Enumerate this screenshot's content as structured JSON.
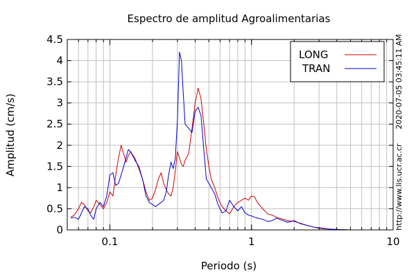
{
  "chart_data": {
    "type": "line",
    "title": "Espectro de amplitud Agroalimentarias",
    "xlabel": "Periodo (s)",
    "ylabel": "Amplitud (cm/s)",
    "xscale": "log",
    "xlim": [
      0.05,
      10
    ],
    "ylim": [
      0,
      4.5
    ],
    "xticks": [
      0.1,
      1,
      10
    ],
    "xtick_labels": [
      "0.1",
      "1",
      "10"
    ],
    "yticks": [
      0,
      0.5,
      1,
      1.5,
      2,
      2.5,
      3,
      3.5,
      4,
      4.5
    ],
    "ytick_labels": [
      "0",
      "0.5",
      "1",
      "1.5",
      "2",
      "2.5",
      "3",
      "3.5",
      "4",
      "4.5"
    ],
    "grid": true,
    "legend_position": "top-right",
    "timestamp": "2020-07-05 03:45:11 AM",
    "url": "http://www.lis.ucr.ac.cr",
    "series": [
      {
        "name": "LONG",
        "color": "#cc0000",
        "x": [
          0.053,
          0.056,
          0.06,
          0.063,
          0.066,
          0.07,
          0.073,
          0.077,
          0.08,
          0.085,
          0.09,
          0.095,
          0.1,
          0.105,
          0.11,
          0.115,
          0.12,
          0.125,
          0.13,
          0.135,
          0.14,
          0.15,
          0.16,
          0.17,
          0.18,
          0.19,
          0.2,
          0.21,
          0.22,
          0.23,
          0.24,
          0.25,
          0.26,
          0.27,
          0.28,
          0.29,
          0.3,
          0.31,
          0.32,
          0.33,
          0.34,
          0.36,
          0.38,
          0.4,
          0.42,
          0.44,
          0.46,
          0.48,
          0.5,
          0.52,
          0.55,
          0.58,
          0.62,
          0.66,
          0.7,
          0.75,
          0.8,
          0.85,
          0.9,
          0.95,
          1.0,
          1.05,
          1.1,
          1.2,
          1.3,
          1.4,
          1.5,
          1.6,
          1.8,
          2.0,
          2.2,
          2.5,
          2.8,
          3.0,
          3.2,
          3.5,
          4.0,
          5.0,
          6.0,
          7.0,
          8.0,
          10.0
        ],
        "values": [
          0.3,
          0.35,
          0.5,
          0.65,
          0.6,
          0.45,
          0.4,
          0.55,
          0.7,
          0.6,
          0.5,
          0.65,
          0.9,
          0.8,
          1.3,
          1.7,
          2.0,
          1.8,
          1.6,
          1.75,
          1.85,
          1.7,
          1.45,
          1.2,
          0.9,
          0.7,
          0.75,
          0.95,
          1.2,
          1.35,
          1.1,
          0.95,
          0.85,
          0.8,
          1.0,
          1.4,
          1.85,
          1.7,
          1.55,
          1.5,
          1.65,
          1.8,
          2.4,
          3.0,
          3.35,
          3.1,
          2.5,
          1.9,
          1.5,
          1.2,
          1.0,
          0.75,
          0.55,
          0.45,
          0.38,
          0.55,
          0.65,
          0.7,
          0.75,
          0.7,
          0.8,
          0.78,
          0.65,
          0.5,
          0.38,
          0.35,
          0.3,
          0.27,
          0.22,
          0.2,
          0.16,
          0.1,
          0.06,
          0.04,
          0.03,
          0.02,
          0.01,
          0.0,
          0.0,
          0.0,
          0.0,
          0.0
        ]
      },
      {
        "name": "TRAN",
        "color": "#0000cc",
        "x": [
          0.053,
          0.056,
          0.06,
          0.063,
          0.066,
          0.07,
          0.073,
          0.077,
          0.08,
          0.085,
          0.09,
          0.095,
          0.1,
          0.105,
          0.11,
          0.115,
          0.12,
          0.125,
          0.13,
          0.135,
          0.14,
          0.15,
          0.16,
          0.17,
          0.18,
          0.19,
          0.2,
          0.21,
          0.22,
          0.23,
          0.24,
          0.25,
          0.26,
          0.27,
          0.28,
          0.29,
          0.3,
          0.31,
          0.32,
          0.33,
          0.34,
          0.36,
          0.38,
          0.4,
          0.42,
          0.44,
          0.46,
          0.48,
          0.5,
          0.52,
          0.55,
          0.58,
          0.62,
          0.66,
          0.7,
          0.75,
          0.8,
          0.85,
          0.9,
          0.95,
          1.0,
          1.05,
          1.1,
          1.2,
          1.3,
          1.4,
          1.5,
          1.6,
          1.8,
          2.0,
          2.2,
          2.5,
          2.8,
          3.0,
          3.2,
          3.5,
          4.0,
          5.0,
          6.0,
          7.0,
          8.0,
          10.0
        ],
        "values": [
          0.28,
          0.3,
          0.25,
          0.4,
          0.55,
          0.5,
          0.35,
          0.25,
          0.5,
          0.65,
          0.55,
          0.8,
          1.3,
          1.35,
          1.05,
          1.1,
          1.3,
          1.5,
          1.7,
          1.9,
          1.85,
          1.65,
          1.5,
          1.2,
          0.8,
          0.65,
          0.6,
          0.55,
          0.6,
          0.65,
          0.7,
          0.9,
          1.3,
          1.6,
          1.45,
          1.7,
          2.6,
          4.2,
          4.0,
          3.2,
          2.5,
          2.4,
          2.3,
          2.8,
          2.9,
          2.7,
          1.9,
          1.2,
          1.1,
          1.0,
          0.85,
          0.6,
          0.4,
          0.45,
          0.7,
          0.55,
          0.45,
          0.55,
          0.4,
          0.35,
          0.33,
          0.3,
          0.28,
          0.25,
          0.2,
          0.22,
          0.28,
          0.24,
          0.18,
          0.22,
          0.15,
          0.1,
          0.06,
          0.05,
          0.04,
          0.02,
          0.01,
          0.0,
          0.0,
          0.0,
          0.0,
          0.0
        ]
      }
    ]
  }
}
